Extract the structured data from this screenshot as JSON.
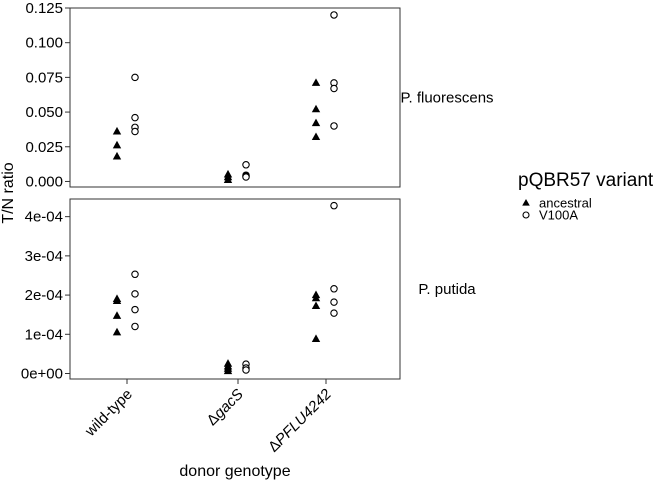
{
  "chart_data": {
    "type": "scatter",
    "xlabel": "donor genotype",
    "ylabel": "T/N ratio",
    "categories": [
      {
        "prefix": "",
        "italic": "",
        "plain": "wild-type"
      },
      {
        "prefix": "Δ",
        "italic": "gacS",
        "plain": ""
      },
      {
        "prefix": "Δ",
        "italic": "PFLU4242",
        "plain": ""
      }
    ],
    "legend": {
      "title": "pQBR57 variant",
      "placement": "right",
      "entries": [
        {
          "label": "ancestral",
          "marker": "filled-triangle"
        },
        {
          "label": "V100A",
          "marker": "open-circle"
        }
      ]
    },
    "facets": [
      {
        "label": "P. fluorescens",
        "ylim": [
          -0.004,
          0.125
        ],
        "yticks": [
          0.0,
          0.025,
          0.05,
          0.075,
          0.1,
          0.125
        ],
        "ytick_labels": [
          "0.000",
          "0.025",
          "0.050",
          "0.075",
          "0.100",
          "0.125"
        ],
        "series": [
          {
            "name": "ancestral",
            "points": [
              [
                0,
                0.036
              ],
              [
                0,
                0.026
              ],
              [
                0,
                0.018
              ],
              [
                1,
                0.005
              ],
              [
                1,
                0.003
              ],
              [
                1,
                0.001
              ],
              [
                2,
                0.071
              ],
              [
                2,
                0.052
              ],
              [
                2,
                0.042
              ],
              [
                2,
                0.032
              ]
            ]
          },
          {
            "name": "V100A",
            "points": [
              [
                0,
                0.075
              ],
              [
                0,
                0.046
              ],
              [
                0,
                0.039
              ],
              [
                0,
                0.036
              ],
              [
                1,
                0.012
              ],
              [
                1,
                0.0045
              ],
              [
                1,
                0.0038
              ],
              [
                1,
                0.0032
              ],
              [
                2,
                0.12
              ],
              [
                2,
                0.071
              ],
              [
                2,
                0.067
              ],
              [
                2,
                0.04
              ]
            ]
          }
        ]
      },
      {
        "label": "P. putida",
        "ylim": [
          -1.4e-05,
          0.000445
        ],
        "yticks": [
          0,
          0.0001,
          0.0002,
          0.0003,
          0.0004
        ],
        "ytick_labels": [
          "0e+00",
          "1e-04",
          "2e-04",
          "3e-04",
          "4e-04"
        ],
        "series": [
          {
            "name": "ancestral",
            "points": [
              [
                0,
                0.00019
              ],
              [
                0,
                0.000185
              ],
              [
                0,
                0.000147
              ],
              [
                0,
                0.000105
              ],
              [
                1,
                2.5e-05
              ],
              [
                1,
                1.8e-05
              ],
              [
                1,
                1.2e-05
              ],
              [
                1,
                6e-06
              ],
              [
                2,
                0.0002
              ],
              [
                2,
                0.000192
              ],
              [
                2,
                0.000172
              ],
              [
                2,
                8.8e-05
              ]
            ]
          },
          {
            "name": "V100A",
            "points": [
              [
                0,
                0.000253
              ],
              [
                0,
                0.000203
              ],
              [
                0,
                0.000163
              ],
              [
                0,
                0.00012
              ],
              [
                1,
                2.4e-05
              ],
              [
                1,
                1.4e-05
              ],
              [
                1,
                9e-06
              ],
              [
                2,
                0.000428
              ],
              [
                2,
                0.000216
              ],
              [
                2,
                0.000182
              ],
              [
                2,
                0.000154
              ]
            ]
          }
        ]
      }
    ]
  }
}
